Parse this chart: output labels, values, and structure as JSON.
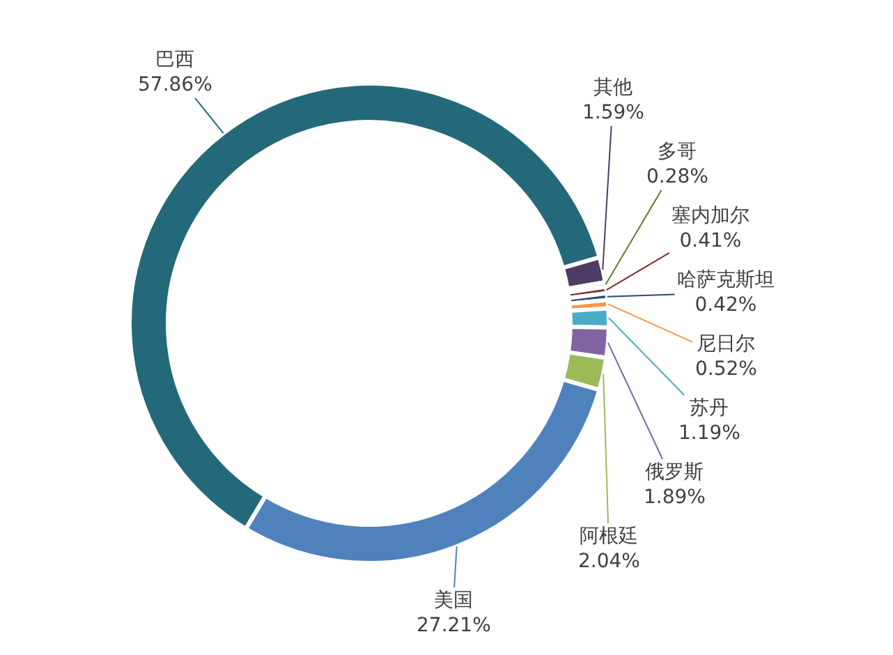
{
  "chart_data": {
    "type": "donut",
    "categories": [
      "其他",
      "多哥",
      "塞内加尔",
      "哈萨克斯坦",
      "尼日尔",
      "苏丹",
      "俄罗斯",
      "阿根廷",
      "美国",
      "巴西"
    ],
    "values": [
      1.59,
      0.28,
      0.41,
      0.42,
      0.52,
      1.19,
      1.89,
      2.04,
      27.21,
      57.86
    ],
    "value_labels": [
      "1.59%",
      "0.28%",
      "0.41%",
      "0.42%",
      "0.52%",
      "1.19%",
      "1.89%",
      "2.04%",
      "27.21%",
      "57.86%"
    ],
    "colors": [
      "#4f3b63",
      "#5e7a2e",
      "#7b2c2a",
      "#2a4a74",
      "#f79646",
      "#4bacc6",
      "#8064a2",
      "#9bbb59",
      "#4f81bd",
      "#23697a"
    ],
    "legend": false
  }
}
